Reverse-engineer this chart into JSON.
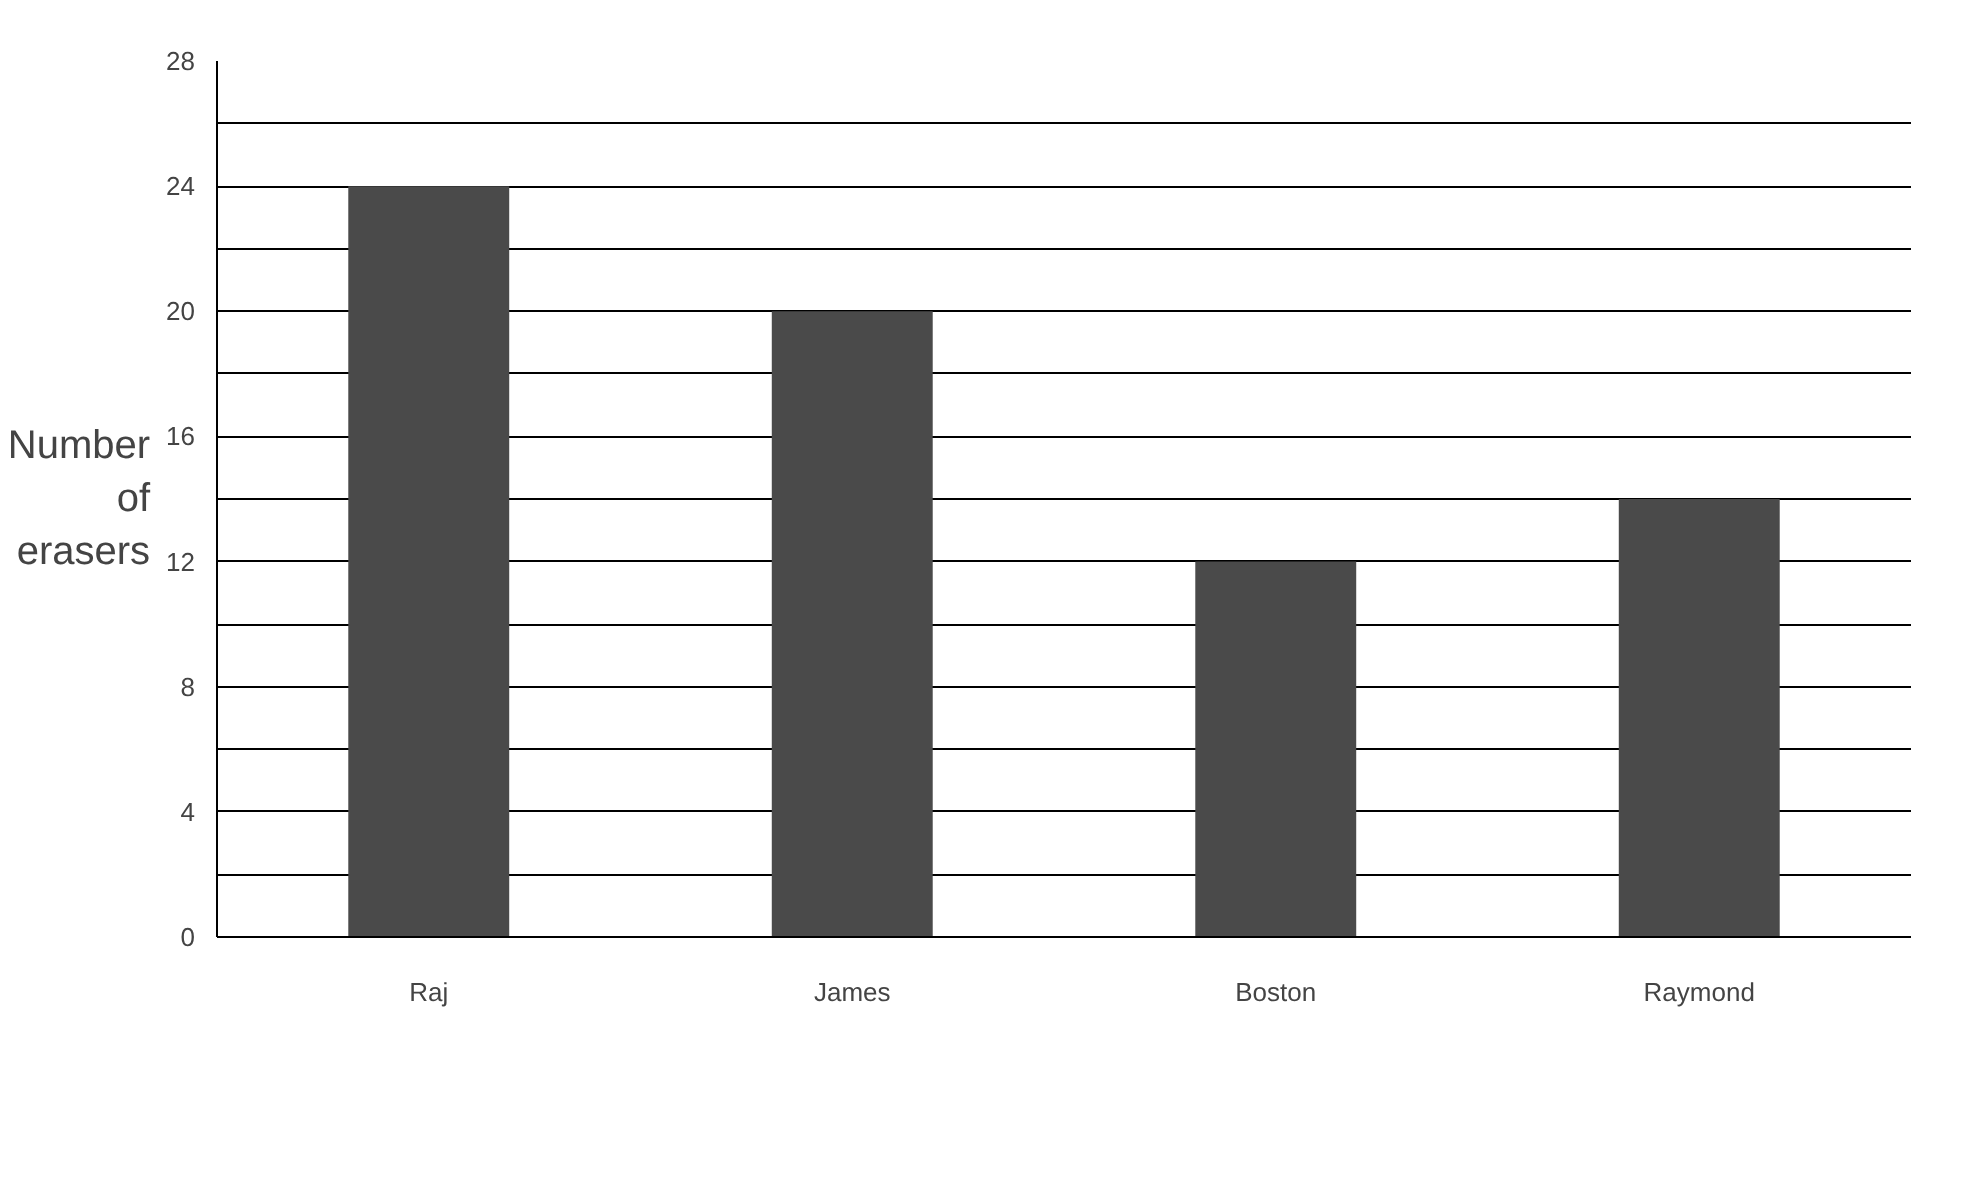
{
  "chart_data": {
    "type": "bar",
    "ylabel": "Number of erasers",
    "categories": [
      "Raj",
      "James",
      "Boston",
      "Raymond"
    ],
    "values": [
      24,
      20,
      12,
      14
    ],
    "color": "#4a4a4a",
    "ylim": [
      0,
      28
    ],
    "yticks": [
      0,
      {
        "value": 2,
        "label": null
      },
      4,
      {
        "value": 6,
        "label": null
      },
      8,
      {
        "value": 10,
        "label": null
      },
      12,
      {
        "value": 14,
        "label": null
      },
      16,
      {
        "value": 18,
        "label": null
      },
      20,
      {
        "value": 22,
        "label": null
      },
      24,
      {
        "value": 26,
        "label": null
      },
      28
    ],
    "grid": "y"
  }
}
